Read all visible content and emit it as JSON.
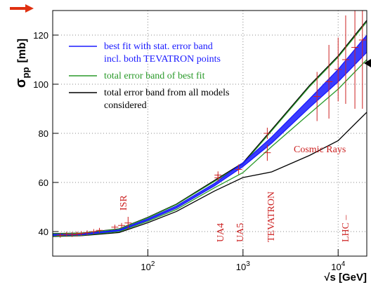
{
  "chart_data": {
    "type": "band",
    "y_label": "σ",
    "y_label_sub": "pp",
    "y_label_unit": "[mb]",
    "x_label": "√s [GeV]",
    "xlog": true,
    "grid": true,
    "xlim": [
      10,
      20000
    ],
    "ylim": [
      30,
      130
    ],
    "xticks": [
      {
        "value": 100,
        "label": "10",
        "exponent": "2"
      },
      {
        "value": 1000,
        "label": "10",
        "exponent": "3"
      },
      {
        "value": 10000,
        "label": "10",
        "exponent": "4"
      }
    ],
    "yticks": [
      40,
      60,
      80,
      100,
      120
    ],
    "x": [
      10,
      20,
      50,
      100,
      200,
      500,
      1000,
      2000,
      5000,
      10000,
      20000
    ],
    "series": [
      {
        "name": [
          "best fit with stat. error band",
          "incl. both TEVATRON points"
        ],
        "color": "#1a1aff",
        "lower": [
          38.5,
          38.7,
          40.3,
          44.6,
          49.6,
          58.6,
          66.5,
          76,
          90.5,
          101,
          113
        ],
        "upper": [
          38.8,
          39,
          40.7,
          45.2,
          50.4,
          59.6,
          68,
          78.5,
          94,
          106,
          120
        ]
      },
      {
        "name": [
          "total error band of best fit"
        ],
        "color": "#2a9a2a",
        "lower": [
          38.2,
          38.5,
          40,
          44.2,
          49,
          57.8,
          64,
          74.6,
          88,
          98,
          110
        ],
        "upper": [
          39.1,
          39.3,
          41,
          45.6,
          51,
          60.4,
          67.5,
          81,
          99,
          111,
          125.4
        ]
      },
      {
        "name": [
          "total error band from all models",
          "considered"
        ],
        "color": "#000000",
        "lower": [
          38,
          38.3,
          39.6,
          43.6,
          48.2,
          56.5,
          62,
          64.3,
          71,
          77,
          88.6
        ],
        "upper": [
          39.2,
          39.4,
          41.1,
          45.8,
          51.2,
          60.8,
          68,
          81.5,
          99.5,
          111.5,
          126
        ]
      }
    ],
    "points": {
      "color": "#cc2222",
      "x": [
        12,
        14,
        16,
        18,
        20,
        23,
        27,
        31,
        45,
        53,
        62,
        546,
        546,
        900,
        1800,
        1800,
        6000,
        8000,
        10000,
        12000,
        15000,
        18000
      ],
      "y": [
        38.5,
        38.9,
        38.8,
        39.0,
        39.2,
        39.5,
        40.0,
        40.5,
        41.8,
        42.5,
        43.5,
        61.9,
        63,
        65.3,
        72.1,
        80.0,
        95,
        101,
        106,
        110,
        115,
        118
      ],
      "err": [
        1,
        1,
        1,
        1,
        1,
        1,
        1,
        1,
        1,
        1,
        2.5,
        1.5,
        1.5,
        2,
        3.3,
        2.3,
        10,
        15,
        13,
        18,
        25,
        28
      ]
    },
    "annotations": [
      "ISR",
      "UA4",
      "UA5",
      "TEVATRON",
      "LHC –",
      "Cosmic Rays"
    ]
  }
}
